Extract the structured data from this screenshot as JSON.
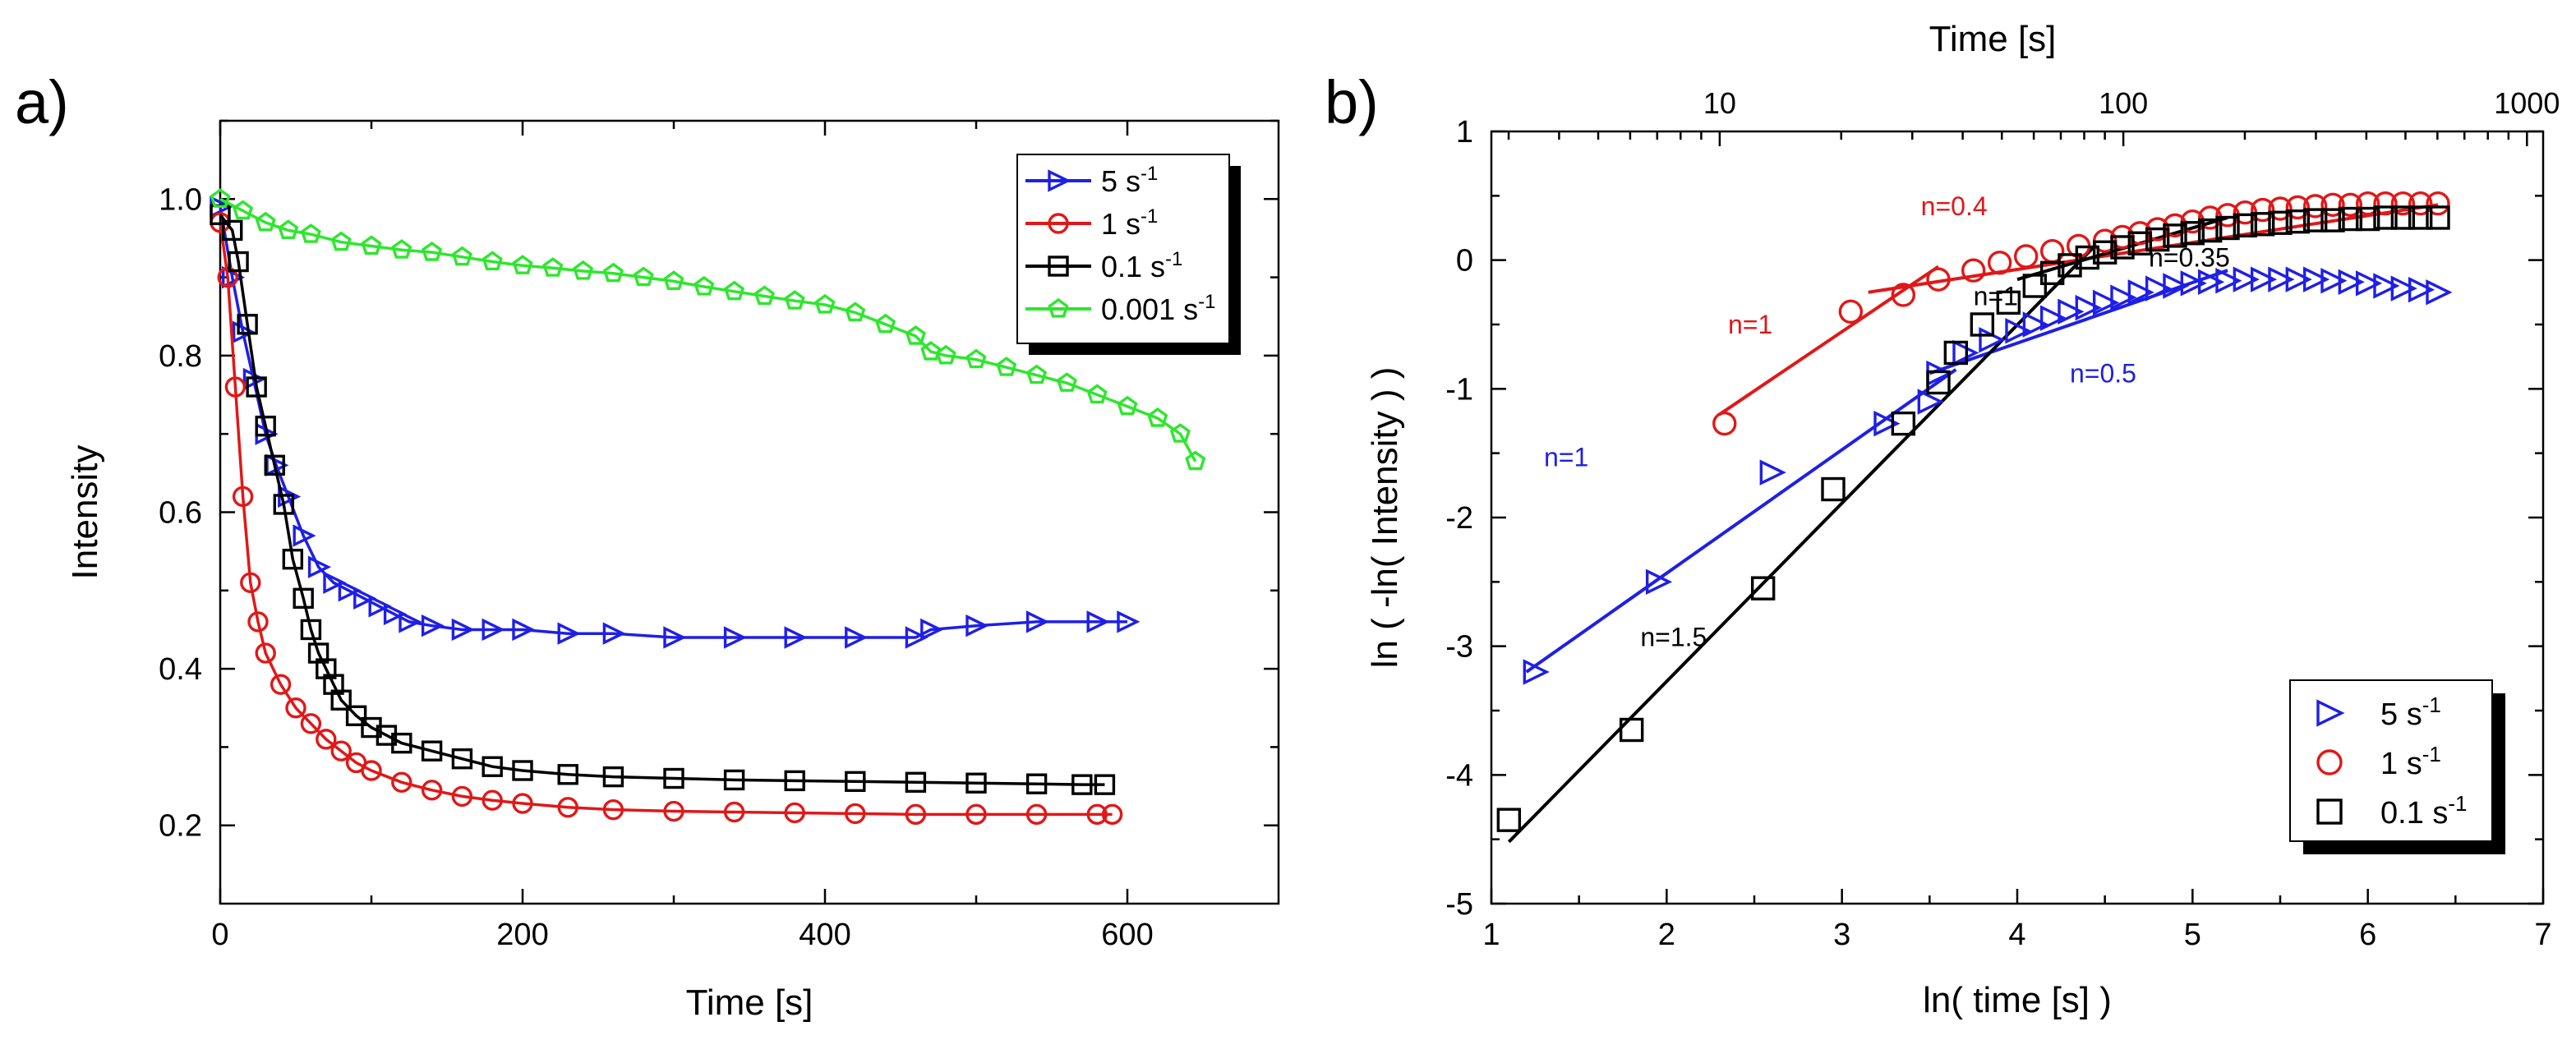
{
  "panels": {
    "a": {
      "label": "a)"
    },
    "b": {
      "label": "b)"
    }
  },
  "chart_data": [
    {
      "id": "a",
      "type": "line",
      "xlabel": "Time [s]",
      "ylabel": "Intensity",
      "xlim": [
        0,
        700
      ],
      "ylim": [
        0.1,
        1.1
      ],
      "xticks": [
        0,
        200,
        400,
        600
      ],
      "yticks": [
        0.2,
        0.4,
        0.6,
        0.8,
        1.0
      ],
      "ytick_labels": [
        "0.2",
        "0.4",
        "0.6",
        "0.8",
        "1.0"
      ],
      "legend_position": "top-right",
      "series": [
        {
          "name": "5 s",
          "sup": "-1",
          "color": "#1f1fe6",
          "marker": "triangle-right",
          "points": [
            [
              0,
              0.99
            ],
            [
              8,
              0.9
            ],
            [
              15,
              0.83
            ],
            [
              22,
              0.77
            ],
            [
              30,
              0.7
            ],
            [
              37,
              0.66
            ],
            [
              45,
              0.62
            ],
            [
              55,
              0.57
            ],
            [
              65,
              0.53
            ],
            [
              75,
              0.51
            ],
            [
              85,
              0.5
            ],
            [
              95,
              0.49
            ],
            [
              105,
              0.48
            ],
            [
              115,
              0.47
            ],
            [
              125,
              0.46
            ],
            [
              140,
              0.455
            ],
            [
              160,
              0.45
            ],
            [
              180,
              0.45
            ],
            [
              200,
              0.45
            ],
            [
              230,
              0.445
            ],
            [
              260,
              0.445
            ],
            [
              300,
              0.44
            ],
            [
              340,
              0.44
            ],
            [
              380,
              0.44
            ],
            [
              420,
              0.44
            ],
            [
              460,
              0.44
            ],
            [
              470,
              0.45
            ],
            [
              500,
              0.455
            ],
            [
              540,
              0.46
            ],
            [
              580,
              0.46
            ],
            [
              600,
              0.46
            ]
          ]
        },
        {
          "name": "1 s",
          "sup": "-1",
          "color": "#e01818",
          "marker": "circle",
          "points": [
            [
              0,
              0.97
            ],
            [
              5,
              0.9
            ],
            [
              10,
              0.76
            ],
            [
              15,
              0.62
            ],
            [
              20,
              0.51
            ],
            [
              25,
              0.46
            ],
            [
              30,
              0.42
            ],
            [
              40,
              0.38
            ],
            [
              50,
              0.35
            ],
            [
              60,
              0.33
            ],
            [
              70,
              0.31
            ],
            [
              80,
              0.295
            ],
            [
              90,
              0.28
            ],
            [
              100,
              0.27
            ],
            [
              120,
              0.255
            ],
            [
              140,
              0.245
            ],
            [
              160,
              0.237
            ],
            [
              180,
              0.232
            ],
            [
              200,
              0.228
            ],
            [
              230,
              0.223
            ],
            [
              260,
              0.22
            ],
            [
              300,
              0.218
            ],
            [
              340,
              0.217
            ],
            [
              380,
              0.216
            ],
            [
              420,
              0.215
            ],
            [
              460,
              0.214
            ],
            [
              500,
              0.214
            ],
            [
              540,
              0.214
            ],
            [
              580,
              0.214
            ],
            [
              590,
              0.214
            ]
          ]
        },
        {
          "name": "0.1 s",
          "sup": "-1",
          "color": "#000000",
          "marker": "square",
          "points": [
            [
              0,
              0.98
            ],
            [
              8,
              0.96
            ],
            [
              12,
              0.92
            ],
            [
              18,
              0.84
            ],
            [
              24,
              0.76
            ],
            [
              30,
              0.71
            ],
            [
              36,
              0.66
            ],
            [
              42,
              0.61
            ],
            [
              48,
              0.54
            ],
            [
              55,
              0.49
            ],
            [
              60,
              0.45
            ],
            [
              65,
              0.42
            ],
            [
              70,
              0.4
            ],
            [
              75,
              0.38
            ],
            [
              80,
              0.36
            ],
            [
              90,
              0.34
            ],
            [
              100,
              0.325
            ],
            [
              110,
              0.315
            ],
            [
              120,
              0.305
            ],
            [
              140,
              0.295
            ],
            [
              160,
              0.285
            ],
            [
              180,
              0.275
            ],
            [
              200,
              0.27
            ],
            [
              230,
              0.265
            ],
            [
              260,
              0.262
            ],
            [
              300,
              0.26
            ],
            [
              340,
              0.258
            ],
            [
              380,
              0.257
            ],
            [
              420,
              0.256
            ],
            [
              460,
              0.255
            ],
            [
              500,
              0.254
            ],
            [
              540,
              0.253
            ],
            [
              570,
              0.252
            ],
            [
              585,
              0.252
            ]
          ]
        },
        {
          "name": "0.001 s",
          "sup": "-1",
          "color": "#2ee62e",
          "marker": "pentagon",
          "points": [
            [
              0,
              1.0
            ],
            [
              15,
              0.985
            ],
            [
              30,
              0.97
            ],
            [
              45,
              0.96
            ],
            [
              60,
              0.955
            ],
            [
              80,
              0.945
            ],
            [
              100,
              0.94
            ],
            [
              120,
              0.935
            ],
            [
              140,
              0.932
            ],
            [
              160,
              0.926
            ],
            [
              180,
              0.92
            ],
            [
              200,
              0.915
            ],
            [
              220,
              0.912
            ],
            [
              240,
              0.908
            ],
            [
              260,
              0.905
            ],
            [
              280,
              0.9
            ],
            [
              300,
              0.895
            ],
            [
              320,
              0.888
            ],
            [
              340,
              0.882
            ],
            [
              360,
              0.876
            ],
            [
              380,
              0.87
            ],
            [
              400,
              0.865
            ],
            [
              420,
              0.855
            ],
            [
              440,
              0.84
            ],
            [
              460,
              0.825
            ],
            [
              470,
              0.805
            ],
            [
              480,
              0.8
            ],
            [
              500,
              0.795
            ],
            [
              520,
              0.785
            ],
            [
              540,
              0.775
            ],
            [
              560,
              0.765
            ],
            [
              580,
              0.75
            ],
            [
              600,
              0.735
            ],
            [
              620,
              0.72
            ],
            [
              635,
              0.7
            ],
            [
              645,
              0.665
            ]
          ]
        }
      ]
    },
    {
      "id": "b",
      "type": "scatter",
      "xlabel": "ln( time [s] )",
      "ylabel": "ln ( -ln( Intensity ) )",
      "top_xlabel": "Time [s]",
      "xlim": [
        1,
        7
      ],
      "ylim": [
        -5,
        1
      ],
      "xticks": [
        1,
        2,
        3,
        4,
        5,
        6,
        7
      ],
      "yticks": [
        -5,
        -4,
        -3,
        -2,
        -1,
        0,
        1
      ],
      "top_ticks": [
        10,
        100,
        1000
      ],
      "legend_position": "bottom-right",
      "series": [
        {
          "name": "5 s",
          "sup": "-1",
          "color": "#1f1fe6",
          "marker": "triangle-right",
          "points": [
            [
              1.25,
              -3.2
            ],
            [
              1.95,
              -2.5
            ],
            [
              2.6,
              -1.65
            ],
            [
              3.25,
              -1.27
            ],
            [
              3.5,
              -1.1
            ],
            [
              3.55,
              -0.88
            ],
            [
              3.7,
              -0.72
            ],
            [
              3.85,
              -0.62
            ],
            [
              4.0,
              -0.55
            ],
            [
              4.1,
              -0.5
            ],
            [
              4.2,
              -0.45
            ],
            [
              4.3,
              -0.4
            ],
            [
              4.4,
              -0.37
            ],
            [
              4.5,
              -0.33
            ],
            [
              4.6,
              -0.29
            ],
            [
              4.7,
              -0.25
            ],
            [
              4.8,
              -0.22
            ],
            [
              4.9,
              -0.2
            ],
            [
              5.0,
              -0.18
            ],
            [
              5.1,
              -0.17
            ],
            [
              5.2,
              -0.16
            ],
            [
              5.3,
              -0.15
            ],
            [
              5.4,
              -0.15
            ],
            [
              5.5,
              -0.15
            ],
            [
              5.6,
              -0.15
            ],
            [
              5.7,
              -0.15
            ],
            [
              5.8,
              -0.16
            ],
            [
              5.9,
              -0.17
            ],
            [
              6.0,
              -0.18
            ],
            [
              6.1,
              -0.2
            ],
            [
              6.2,
              -0.22
            ],
            [
              6.3,
              -0.23
            ],
            [
              6.4,
              -0.25
            ]
          ]
        },
        {
          "name": "1 s",
          "sup": "-1",
          "color": "#e01818",
          "marker": "circle",
          "points": [
            [
              2.33,
              -1.27
            ],
            [
              3.05,
              -0.4
            ],
            [
              3.35,
              -0.27
            ],
            [
              3.55,
              -0.15
            ],
            [
              3.75,
              -0.08
            ],
            [
              3.9,
              -0.02
            ],
            [
              4.05,
              0.03
            ],
            [
              4.2,
              0.07
            ],
            [
              4.35,
              0.11
            ],
            [
              4.5,
              0.15
            ],
            [
              4.6,
              0.18
            ],
            [
              4.7,
              0.21
            ],
            [
              4.8,
              0.24
            ],
            [
              4.9,
              0.27
            ],
            [
              5.0,
              0.3
            ],
            [
              5.1,
              0.33
            ],
            [
              5.2,
              0.35
            ],
            [
              5.3,
              0.37
            ],
            [
              5.4,
              0.39
            ],
            [
              5.5,
              0.4
            ],
            [
              5.6,
              0.41
            ],
            [
              5.7,
              0.42
            ],
            [
              5.8,
              0.43
            ],
            [
              5.9,
              0.43
            ],
            [
              6.0,
              0.44
            ],
            [
              6.1,
              0.44
            ],
            [
              6.2,
              0.44
            ],
            [
              6.3,
              0.44
            ],
            [
              6.4,
              0.44
            ]
          ]
        },
        {
          "name": "0.1 s",
          "sup": "-1",
          "color": "#000000",
          "marker": "square",
          "points": [
            [
              1.1,
              -4.35
            ],
            [
              1.8,
              -3.65
            ],
            [
              2.55,
              -2.55
            ],
            [
              2.95,
              -1.78
            ],
            [
              3.35,
              -1.27
            ],
            [
              3.55,
              -0.95
            ],
            [
              3.65,
              -0.72
            ],
            [
              3.8,
              -0.5
            ],
            [
              3.95,
              -0.33
            ],
            [
              4.1,
              -0.2
            ],
            [
              4.2,
              -0.1
            ],
            [
              4.3,
              -0.04
            ],
            [
              4.4,
              0.02
            ],
            [
              4.5,
              0.06
            ],
            [
              4.6,
              0.1
            ],
            [
              4.7,
              0.13
            ],
            [
              4.8,
              0.16
            ],
            [
              4.9,
              0.19
            ],
            [
              5.0,
              0.21
            ],
            [
              5.1,
              0.23
            ],
            [
              5.2,
              0.25
            ],
            [
              5.3,
              0.27
            ],
            [
              5.4,
              0.28
            ],
            [
              5.5,
              0.29
            ],
            [
              5.6,
              0.3
            ],
            [
              5.7,
              0.31
            ],
            [
              5.8,
              0.31
            ],
            [
              5.9,
              0.32
            ],
            [
              6.0,
              0.32
            ],
            [
              6.1,
              0.33
            ],
            [
              6.2,
              0.33
            ],
            [
              6.3,
              0.33
            ],
            [
              6.4,
              0.33
            ]
          ]
        }
      ],
      "fit_lines": [
        {
          "color": "#e01818",
          "from": [
            2.3,
            -1.2
          ],
          "to": [
            3.55,
            -0.05
          ]
        },
        {
          "color": "#e01818",
          "from": [
            3.15,
            -0.25
          ],
          "to": [
            6.4,
            0.43
          ]
        },
        {
          "color": "#1f1fe6",
          "from": [
            1.2,
            -3.2
          ],
          "to": [
            3.65,
            -0.85
          ]
        },
        {
          "color": "#1f1fe6",
          "from": [
            3.5,
            -0.88
          ],
          "to": [
            5.2,
            -0.08
          ]
        },
        {
          "color": "#000000",
          "from": [
            1.1,
            -4.52
          ],
          "to": [
            4.45,
            0.12
          ]
        },
        {
          "color": "#000000",
          "from": [
            4.0,
            -0.15
          ],
          "to": [
            5.2,
            0.33
          ]
        }
      ],
      "annotations": [
        {
          "text": "n=0.4",
          "color": "#e01818",
          "x": 3.45,
          "y": 0.35
        },
        {
          "text": "n=1",
          "color": "#e01818",
          "x": 2.35,
          "y": -0.57
        },
        {
          "text": "n=0.35",
          "color": "#000000",
          "x": 4.75,
          "y": -0.05
        },
        {
          "text": "n=1",
          "color": "#000000",
          "x": 3.75,
          "y": -0.35
        },
        {
          "text": "n=0.5",
          "color": "#1f1fe6",
          "x": 4.3,
          "y": -0.95
        },
        {
          "text": "n=1",
          "color": "#1f1fe6",
          "x": 1.3,
          "y": -1.6
        },
        {
          "text": "n=1.5",
          "color": "#000000",
          "x": 1.85,
          "y": -3.0
        }
      ]
    }
  ]
}
